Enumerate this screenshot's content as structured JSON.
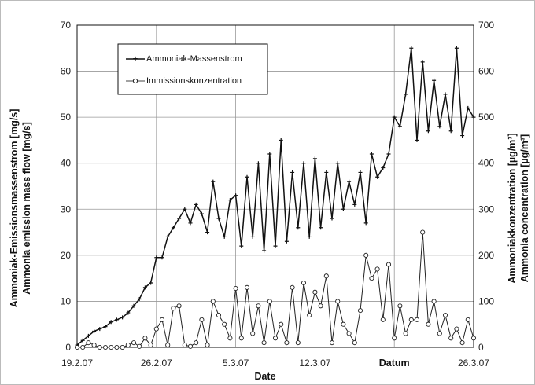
{
  "chart_data": {
    "type": "line",
    "x_ticks": [
      "19.2.07",
      "26.2.07",
      "5.3.07",
      "12.3.07",
      "Datum",
      "26.3.07"
    ],
    "xlabel_line2": "Date",
    "ylabel_left": [
      "Ammoniak-Emissionsmassenstrom [mg/s]",
      "Ammonia emission mass flow [mg/s]"
    ],
    "ylabel_right": [
      "Ammoniakkonzentration [µg/m³]",
      "Ammonia concentration [µg/m³]"
    ],
    "ylim_left": [
      0,
      70
    ],
    "ylim_right": [
      0,
      700
    ],
    "y_ticks_left": [
      "0",
      "10",
      "20",
      "30",
      "40",
      "50",
      "60",
      "70"
    ],
    "y_ticks_right": [
      "0",
      "100",
      "200",
      "300",
      "400",
      "500",
      "600",
      "700"
    ],
    "grid": true,
    "legend_position": "top-left",
    "series": [
      {
        "name": "Ammoniak-Massenstrom",
        "axis": "left",
        "color": "#111111",
        "marker": "plus",
        "x": [
          0.0,
          0.5,
          1.0,
          1.5,
          2.0,
          2.5,
          3.0,
          3.5,
          4.0,
          4.5,
          5.0,
          5.5,
          6.0,
          6.5,
          7.0,
          7.5,
          8.0,
          8.5,
          9.0,
          9.5,
          10.0,
          10.5,
          11.0,
          11.5,
          12.0,
          12.5,
          13.0,
          13.5,
          14.0,
          14.5,
          15.0,
          15.5,
          16.0,
          16.5,
          17.0,
          17.5,
          18.0,
          18.5,
          19.0,
          19.5,
          20.0,
          20.5,
          21.0,
          21.5,
          22.0,
          22.5,
          23.0,
          23.5,
          24.0,
          24.5,
          25.0,
          25.5,
          26.0,
          26.5,
          27.0,
          27.5,
          28.0,
          28.5,
          29.0,
          29.5,
          30.0,
          30.5,
          31.0,
          31.5,
          32.0,
          32.5,
          33.0,
          33.5,
          34.0,
          34.5,
          35.0
        ],
        "y": [
          0.5,
          1.5,
          2.5,
          3.5,
          4,
          4.5,
          5.5,
          6,
          6.5,
          7.5,
          9,
          10.5,
          13,
          14,
          19.5,
          19.5,
          24,
          26,
          28,
          30,
          27,
          31,
          29,
          25,
          36,
          28,
          24,
          32,
          33,
          22,
          37,
          24,
          40,
          21,
          42,
          22,
          45,
          23,
          38,
          26,
          40,
          24,
          41,
          26,
          38,
          28,
          40,
          30,
          36,
          31,
          38,
          27,
          42,
          37,
          39,
          42,
          50,
          48,
          55,
          65,
          45,
          62,
          47,
          58,
          48,
          55,
          47,
          65,
          46,
          52,
          50
        ]
      },
      {
        "name": "Immissionskonzentration",
        "axis": "right",
        "color": "#222222",
        "marker": "circle",
        "x": [
          0.0,
          0.5,
          1.0,
          1.5,
          2.0,
          2.5,
          3.0,
          3.5,
          4.0,
          4.5,
          5.0,
          5.5,
          6.0,
          6.5,
          7.0,
          7.5,
          8.0,
          8.5,
          9.0,
          9.5,
          10.0,
          10.5,
          11.0,
          11.5,
          12.0,
          12.5,
          13.0,
          13.5,
          14.0,
          14.5,
          15.0,
          15.5,
          16.0,
          16.5,
          17.0,
          17.5,
          18.0,
          18.5,
          19.0,
          19.5,
          20.0,
          20.5,
          21.0,
          21.5,
          22.0,
          22.5,
          23.0,
          23.5,
          24.0,
          24.5,
          25.0,
          25.5,
          26.0,
          26.5,
          27.0,
          27.5,
          28.0,
          28.5,
          29.0,
          29.5,
          30.0,
          30.5,
          31.0,
          31.5,
          32.0,
          32.5,
          33.0,
          33.5,
          34.0,
          34.5,
          35.0
        ],
        "y": [
          0,
          0,
          10,
          5,
          0,
          0,
          0,
          0,
          0,
          5,
          10,
          2,
          20,
          5,
          40,
          60,
          5,
          85,
          90,
          5,
          2,
          10,
          60,
          5,
          100,
          70,
          50,
          20,
          128,
          20,
          130,
          30,
          90,
          10,
          100,
          20,
          50,
          10,
          130,
          10,
          140,
          70,
          120,
          90,
          155,
          10,
          100,
          50,
          30,
          10,
          80,
          200,
          150,
          170,
          60,
          180,
          20,
          90,
          30,
          60,
          60,
          250,
          50,
          100,
          30,
          70,
          20,
          40,
          10,
          60,
          20
        ]
      }
    ]
  }
}
